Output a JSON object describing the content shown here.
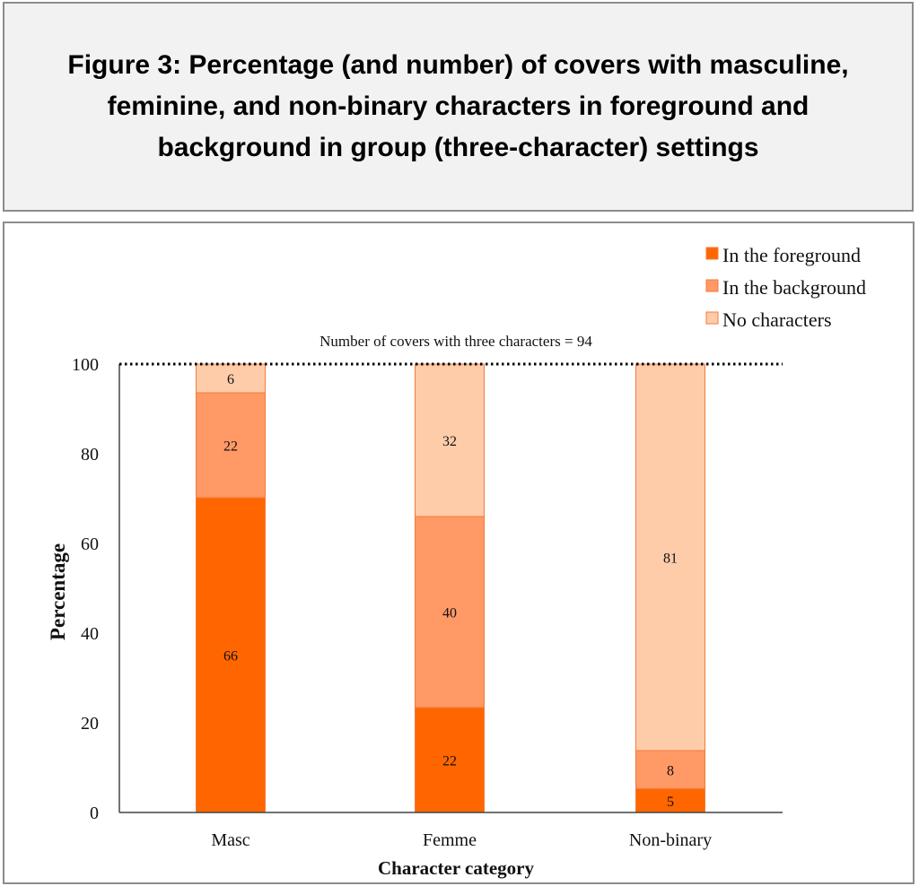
{
  "figure_title": "Figure 3: Percentage (and number) of covers with masculine, feminine, and non-binary characters in foreground and background in group (three-character) settings",
  "chart_data": {
    "type": "bar",
    "stacked": true,
    "categories": [
      "Masc",
      "Femme",
      "Non-binary"
    ],
    "series": [
      {
        "name": "In the foreground",
        "color": "#FF6600",
        "counts": [
          66,
          22,
          5
        ],
        "values": [
          70.2,
          23.4,
          5.3
        ]
      },
      {
        "name": "In the background",
        "color": "#FF9966",
        "counts": [
          22,
          40,
          8
        ],
        "values": [
          23.4,
          42.6,
          8.5
        ]
      },
      {
        "name": "No characters",
        "color": "#FFCCAA",
        "counts": [
          6,
          32,
          81
        ],
        "values": [
          6.4,
          34.0,
          86.2
        ]
      }
    ],
    "annotation": "Number of covers with three characters = 94",
    "reference_line": 100,
    "xlabel": "Character category",
    "ylabel": "Percentage",
    "ylim": [
      0,
      100
    ],
    "yticks": [
      0,
      20,
      40,
      60,
      80,
      100
    ],
    "legend_position": "top-right",
    "grid": false
  }
}
